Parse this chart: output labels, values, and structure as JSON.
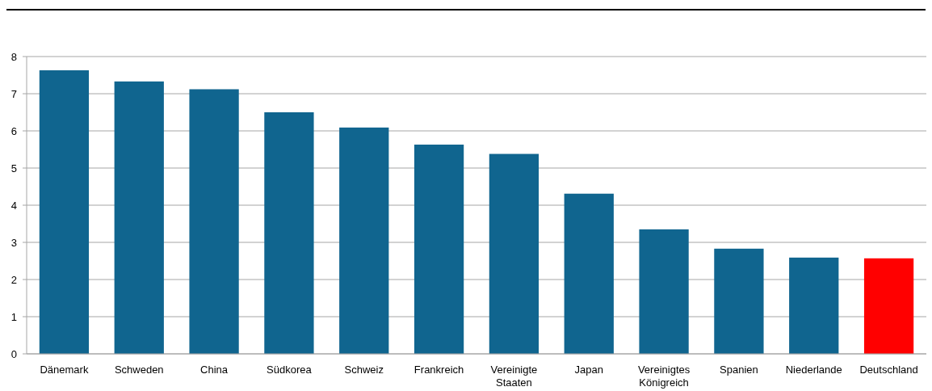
{
  "chart_data": {
    "type": "bar",
    "categories": [
      "Dänemark",
      "Schweden",
      "China",
      "Südkorea",
      "Schweiz",
      "Frankreich",
      "Vereinigte Staaten",
      "Japan",
      "Vereinigtes Königreich",
      "Spanien",
      "Niederlande",
      "Deutschland"
    ],
    "values": [
      7.63,
      7.33,
      7.12,
      6.5,
      6.09,
      5.63,
      5.38,
      4.31,
      3.35,
      2.83,
      2.59,
      2.57
    ],
    "colors": [
      "#10658f",
      "#10658f",
      "#10658f",
      "#10658f",
      "#10658f",
      "#10658f",
      "#10658f",
      "#10658f",
      "#10658f",
      "#10658f",
      "#10658f",
      "#ff0000"
    ],
    "ylim": [
      0,
      8
    ],
    "yticks": [
      0,
      1,
      2,
      3,
      4,
      5,
      6,
      7,
      8
    ],
    "grid": "y"
  }
}
